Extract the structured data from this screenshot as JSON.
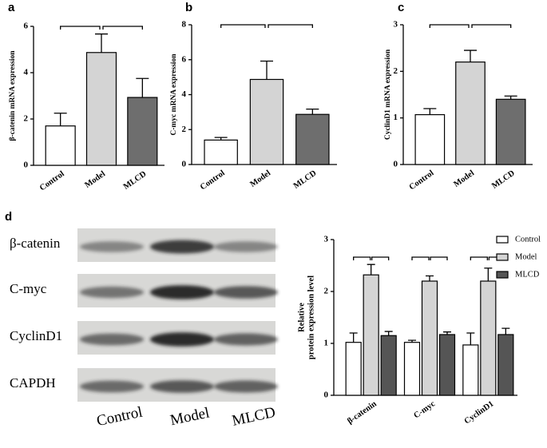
{
  "chart_data": [
    {
      "type": "bar",
      "panel_label": "a",
      "y_label": "β-catenin mRNA expression",
      "categories": [
        "Control",
        "Model",
        "MLCD"
      ],
      "values": [
        1.7,
        4.87,
        2.93
      ],
      "errors": [
        0.55,
        0.8,
        0.82
      ],
      "colors": [
        "#ffffff",
        "#d4d4d4",
        "#6e6e6e"
      ],
      "ylim": [
        0,
        6
      ],
      "yticks": [
        0,
        2,
        4,
        6
      ],
      "annotations": [
        "**",
        "*"
      ]
    },
    {
      "type": "bar",
      "panel_label": "b",
      "y_label": "C-myc mRNA expression",
      "categories": [
        "Control",
        "Model",
        "MLCD"
      ],
      "values": [
        1.4,
        4.87,
        2.87
      ],
      "errors": [
        0.15,
        1.05,
        0.3
      ],
      "colors": [
        "#ffffff",
        "#d4d4d4",
        "#6e6e6e"
      ],
      "ylim": [
        0,
        8
      ],
      "yticks": [
        0,
        2,
        4,
        6,
        8
      ],
      "annotations": [
        "**",
        "*"
      ]
    },
    {
      "type": "bar",
      "panel_label": "c",
      "y_label": "CyclinD1 mRNA expression",
      "categories": [
        "Control",
        "Model",
        "MLCD"
      ],
      "values": [
        1.07,
        2.2,
        1.4
      ],
      "errors": [
        0.13,
        0.25,
        0.07
      ],
      "colors": [
        "#ffffff",
        "#d4d4d4",
        "#6e6e6e"
      ],
      "ylim": [
        0,
        3
      ],
      "yticks": [
        0,
        1,
        2,
        3
      ],
      "annotations": [
        "***",
        "**"
      ]
    },
    {
      "type": "grouped_bar",
      "y_label": [
        "Relative",
        "protein expression level"
      ],
      "categories": [
        "β-catenin",
        "C-myc",
        "CyclinD1"
      ],
      "series": [
        {
          "name": "Control",
          "color": "#ffffff",
          "values": [
            1.02,
            1.02,
            0.97
          ],
          "errors": [
            0.18,
            0.04,
            0.23
          ]
        },
        {
          "name": "Model",
          "color": "#d4d4d4",
          "values": [
            2.32,
            2.2,
            2.2
          ],
          "errors": [
            0.2,
            0.1,
            0.25
          ]
        },
        {
          "name": "MLCD",
          "color": "#555555",
          "values": [
            1.15,
            1.17,
            1.17
          ],
          "errors": [
            0.08,
            0.05,
            0.12
          ]
        }
      ],
      "ylim": [
        0,
        3
      ],
      "yticks": [
        0,
        1,
        2,
        3
      ],
      "legend": "right",
      "annotations": [
        [
          "***",
          "***"
        ],
        [
          "***",
          "***"
        ],
        [
          "***",
          "**"
        ]
      ]
    }
  ],
  "blot": {
    "panel_label": "d",
    "rows": [
      "β-catenin",
      "C-myc",
      "CyclinD1",
      "CAPDH"
    ],
    "columns": [
      "Control",
      "Model",
      "MLCD"
    ]
  }
}
